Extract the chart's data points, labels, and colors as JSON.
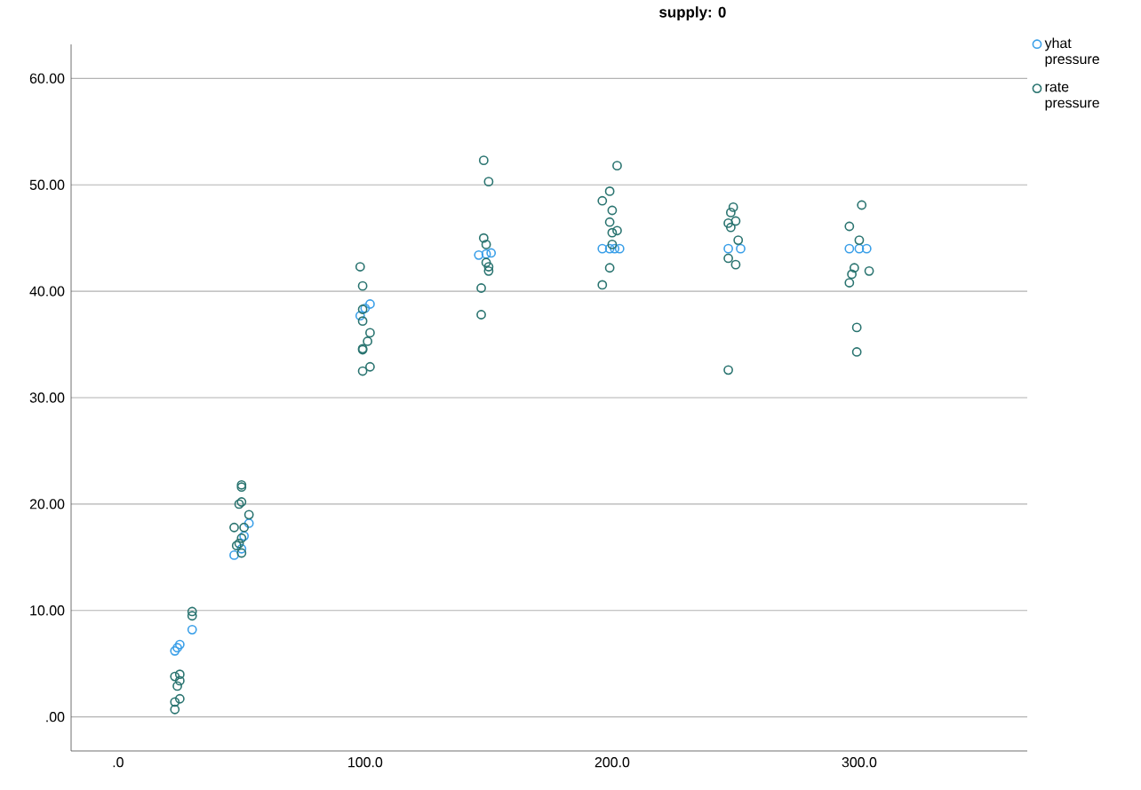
{
  "chart_data": {
    "type": "scatter",
    "title": "supply: 0",
    "xlim": [
      -19,
      368
    ],
    "ylim": [
      -3.2,
      63.2
    ],
    "xticks": [
      {
        "value": 0,
        "label": ".0"
      },
      {
        "value": 100,
        "label": "100.0"
      },
      {
        "value": 200,
        "label": "200.0"
      },
      {
        "value": 300,
        "label": "300.0"
      }
    ],
    "yticks": [
      {
        "value": 0,
        "label": ".00"
      },
      {
        "value": 10,
        "label": "10.00"
      },
      {
        "value": 20,
        "label": "20.00"
      },
      {
        "value": 30,
        "label": "30.00"
      },
      {
        "value": 40,
        "label": "40.00"
      },
      {
        "value": 50,
        "label": "50.00"
      },
      {
        "value": 60,
        "label": "60.00"
      }
    ],
    "grid": "y",
    "legend": "top right",
    "marker": "circle",
    "series": [
      {
        "name": "yhat pressure",
        "color": "#3a9fe8",
        "x": [
          23,
          24,
          25,
          30,
          47,
          53,
          50,
          51,
          98,
          100,
          102,
          146,
          149,
          151,
          196,
          199,
          201,
          203,
          247,
          252,
          296,
          300,
          303
        ],
        "values": [
          6.2,
          6.5,
          6.8,
          8.2,
          15.2,
          18.2,
          15.8,
          17.0,
          37.7,
          38.4,
          38.8,
          43.4,
          43.5,
          43.6,
          44.0,
          44.0,
          44.0,
          44.0,
          44.0,
          44.0,
          44.0,
          44.0,
          44.0
        ]
      },
      {
        "name": "rate pressure",
        "color": "#2a7470",
        "x": [
          23,
          23,
          25,
          23,
          25,
          24,
          25,
          30,
          30,
          50,
          50,
          49,
          50,
          47,
          51,
          53,
          50,
          49,
          50,
          48,
          98,
          99,
          99,
          99,
          102,
          101,
          99,
          99,
          99,
          102,
          148,
          150,
          148,
          149,
          147,
          147,
          149,
          150,
          150,
          202,
          199,
          196,
          200,
          199,
          202,
          200,
          200,
          199,
          196,
          249,
          248,
          247,
          250,
          248,
          251,
          247,
          250,
          247,
          301,
          296,
          300,
          298,
          297,
          296,
          304,
          299,
          299
        ],
        "values": [
          0.7,
          1.4,
          1.7,
          3.8,
          4.0,
          2.9,
          3.4,
          9.9,
          9.5,
          21.8,
          21.6,
          20.0,
          20.2,
          17.8,
          17.8,
          19.0,
          16.8,
          16.3,
          15.4,
          16.1,
          42.3,
          40.5,
          37.2,
          38.3,
          36.1,
          35.3,
          34.5,
          34.6,
          32.5,
          32.9,
          52.3,
          50.3,
          45.0,
          44.4,
          40.3,
          37.8,
          42.7,
          41.9,
          42.3,
          51.8,
          49.4,
          48.5,
          47.6,
          46.5,
          45.7,
          45.5,
          44.4,
          42.2,
          40.6,
          47.9,
          47.4,
          46.4,
          46.6,
          46.0,
          44.8,
          43.1,
          42.5,
          32.6,
          48.1,
          46.1,
          44.8,
          42.2,
          41.6,
          40.8,
          41.9,
          36.6,
          34.3
        ]
      }
    ]
  }
}
